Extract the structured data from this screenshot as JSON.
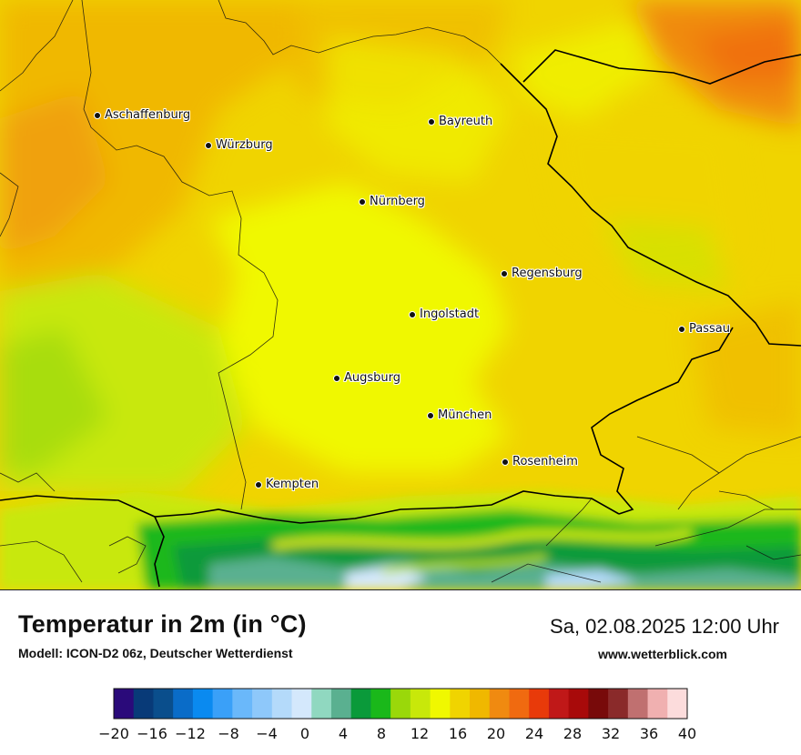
{
  "header": {
    "title": "Temperatur in 2m (in °C)",
    "model": "Modell: ICON-D2 06z, Deutscher Wetterdienst",
    "datetime": "Sa, 02.08.2025 12:00 Uhr",
    "website": "www.wetterblick.com"
  },
  "cities": [
    {
      "id": "aschaffenburg",
      "name": "Aschaffenburg"
    },
    {
      "id": "wuerzburg",
      "name": "Würzburg"
    },
    {
      "id": "bayreuth",
      "name": "Bayreuth"
    },
    {
      "id": "nuernberg",
      "name": "Nürnberg"
    },
    {
      "id": "regensburg",
      "name": "Regensburg"
    },
    {
      "id": "ingolstadt",
      "name": "Ingolstadt"
    },
    {
      "id": "passau",
      "name": "Passau"
    },
    {
      "id": "augsburg",
      "name": "Augsburg"
    },
    {
      "id": "muenchen",
      "name": "München"
    },
    {
      "id": "rosenheim",
      "name": "Rosenheim"
    },
    {
      "id": "kempten",
      "name": "Kempten"
    }
  ],
  "legend": {
    "colors": [
      "#2a0a7a",
      "#083a78",
      "#0a4e8c",
      "#0a6cc8",
      "#0a8af0",
      "#3aa0f8",
      "#6ab8fa",
      "#8ec8fa",
      "#b4dafa",
      "#d4e8fc",
      "#90d8c0",
      "#5ab090",
      "#0a9a3a",
      "#1ab81a",
      "#9ad80a",
      "#c8e80a",
      "#f0f800",
      "#f0d400",
      "#f0b800",
      "#f08a10",
      "#f06a10",
      "#e83a0a",
      "#c01818",
      "#a80a0a",
      "#780a0a",
      "#8a2a2a",
      "#c07070",
      "#f0b0b0",
      "#fcdcdc"
    ],
    "ticks": [
      "−20",
      "−16",
      "−12",
      "−8",
      "−4",
      "0",
      "4",
      "8",
      "12",
      "16",
      "20",
      "24",
      "28",
      "32",
      "36",
      "40"
    ]
  }
}
